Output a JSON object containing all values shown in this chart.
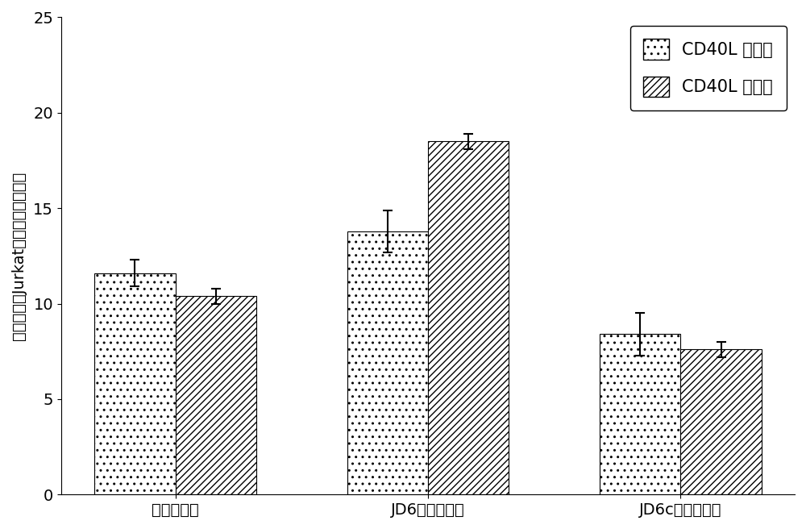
{
  "categories": [
    "普通脂质体",
    "JD6修饰脂质体",
    "JD6c修饰脂质体"
  ],
  "series": [
    {
      "name": "CD40L 低表达",
      "values": [
        11.6,
        13.8,
        8.4
      ],
      "errors": [
        0.7,
        1.1,
        1.1
      ],
      "hatch": ".."
    },
    {
      "name": "CD40L 高表达",
      "values": [
        10.4,
        18.5,
        7.6
      ],
      "errors": [
        0.4,
        0.4,
        0.4
      ],
      "hatch": "////"
    }
  ],
  "ylabel": "脂质体结合Jurkat细胞平均荧光强度",
  "ylim": [
    0,
    25
  ],
  "yticks": [
    0,
    5,
    10,
    15,
    20,
    25
  ],
  "bar_width": 0.32,
  "facecolor": "white",
  "bar_edgecolor": "black",
  "legend_loc": "upper right",
  "legend_fontsize": 15,
  "tick_fontsize": 14,
  "ylabel_fontsize": 14,
  "xlabel_fontsize": 14,
  "figsize": [
    10.0,
    6.56
  ],
  "dpi": 100
}
